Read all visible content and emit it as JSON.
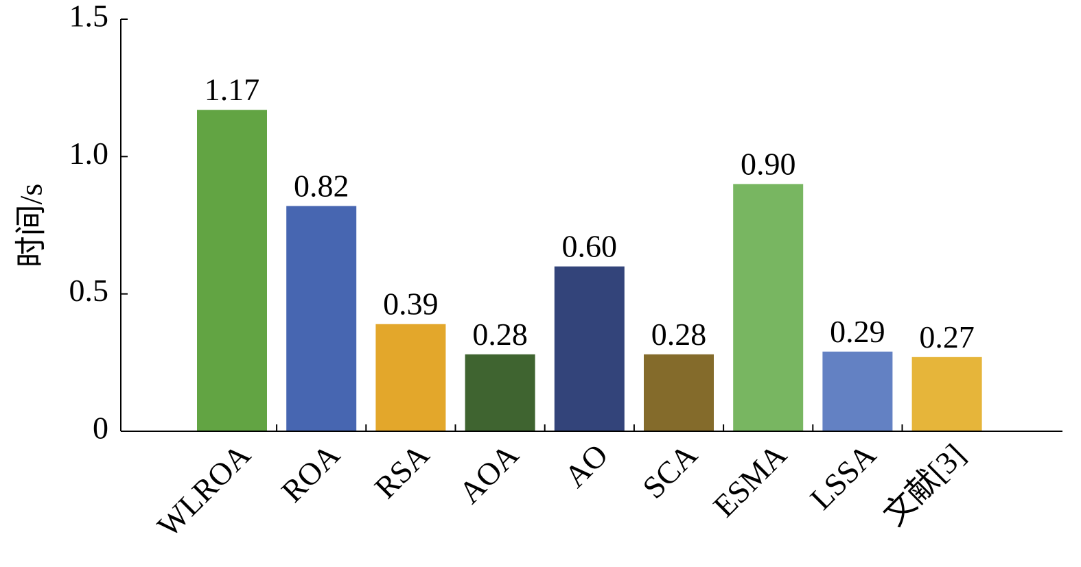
{
  "chart_data": {
    "type": "bar",
    "title": "",
    "xlabel": "",
    "ylabel": "时间/s",
    "categories": [
      "WLROA",
      "ROA",
      "RSA",
      "AOA",
      "AO",
      "SCA",
      "ESMA",
      "LSSA",
      "文献[3]"
    ],
    "values": [
      1.17,
      0.82,
      0.39,
      0.28,
      0.6,
      0.28,
      0.9,
      0.29,
      0.27
    ],
    "data_labels": [
      "1.17",
      "0.82",
      "0.39",
      "0.28",
      "0.60",
      "0.28",
      "0.90",
      "0.29",
      "0.27"
    ],
    "bar_colors": [
      "#62a443",
      "#4766b1",
      "#e3a72b",
      "#3f6430",
      "#33447a",
      "#846b2b",
      "#78b661",
      "#6381c3",
      "#e6b53a"
    ],
    "ylim": [
      0,
      1.5
    ],
    "yticks": [
      0,
      0.5,
      1.0,
      1.5
    ],
    "ytick_labels": [
      "0",
      "0.5",
      "1.0",
      "1.5"
    ],
    "grid": false,
    "legend": "none"
  }
}
